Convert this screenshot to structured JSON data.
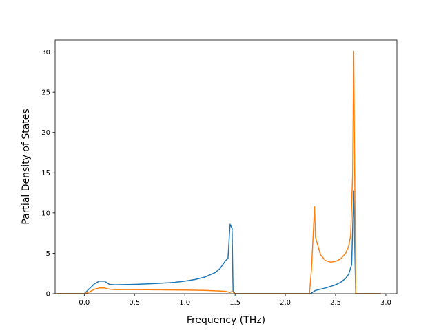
{
  "chart_data": {
    "type": "line",
    "title": "",
    "xlabel": "Frequency (THz)",
    "ylabel": "Partial Density of States",
    "xlim": [
      -0.29,
      3.11
    ],
    "ylim": [
      0,
      31.5
    ],
    "xticks": [
      0.0,
      0.5,
      1.0,
      1.5,
      2.0,
      2.5,
      3.0
    ],
    "xtick_labels": [
      "0.0",
      "0.5",
      "1.0",
      "1.5",
      "2.0",
      "2.5",
      "3.0"
    ],
    "yticks": [
      0,
      5,
      10,
      15,
      20,
      25,
      30
    ],
    "ytick_labels": [
      "0",
      "5",
      "10",
      "15",
      "20",
      "25",
      "30"
    ],
    "grid": false,
    "legend": false,
    "series": [
      {
        "color": "#1f77b4",
        "x": [
          -0.28,
          0.0,
          0.05,
          0.1,
          0.15,
          0.2,
          0.25,
          0.3,
          0.5,
          0.7,
          0.9,
          1.0,
          1.1,
          1.2,
          1.3,
          1.35,
          1.4,
          1.43,
          1.45,
          1.47,
          1.48,
          1.5,
          2.0,
          2.25,
          2.3,
          2.4,
          2.5,
          2.55,
          2.6,
          2.63,
          2.66,
          2.68,
          2.7,
          2.95
        ],
        "y": [
          0,
          0,
          0.6,
          1.2,
          1.55,
          1.55,
          1.15,
          1.1,
          1.15,
          1.25,
          1.4,
          1.55,
          1.75,
          2.05,
          2.6,
          3.1,
          4.0,
          4.4,
          8.6,
          8.1,
          0.4,
          0,
          0,
          0,
          0.4,
          0.7,
          1.1,
          1.4,
          1.9,
          2.4,
          3.6,
          12.7,
          0,
          0
        ]
      },
      {
        "color": "#ff7f0e",
        "x": [
          -0.28,
          0.0,
          0.05,
          0.1,
          0.15,
          0.2,
          0.25,
          0.3,
          0.5,
          1.0,
          1.2,
          1.4,
          1.45,
          1.47,
          1.5,
          2.0,
          2.24,
          2.26,
          2.28,
          2.29,
          2.3,
          2.35,
          2.4,
          2.45,
          2.5,
          2.55,
          2.6,
          2.63,
          2.65,
          2.67,
          2.68,
          2.69,
          2.7,
          2.95
        ],
        "y": [
          0,
          0,
          0.2,
          0.55,
          0.7,
          0.7,
          0.55,
          0.5,
          0.5,
          0.45,
          0.4,
          0.3,
          0.15,
          0.3,
          0,
          0,
          0,
          3.0,
          8.0,
          10.8,
          7.0,
          4.8,
          4.1,
          3.9,
          4.0,
          4.3,
          5.0,
          5.9,
          7.2,
          15.0,
          30.1,
          15.0,
          0,
          0
        ]
      }
    ]
  }
}
